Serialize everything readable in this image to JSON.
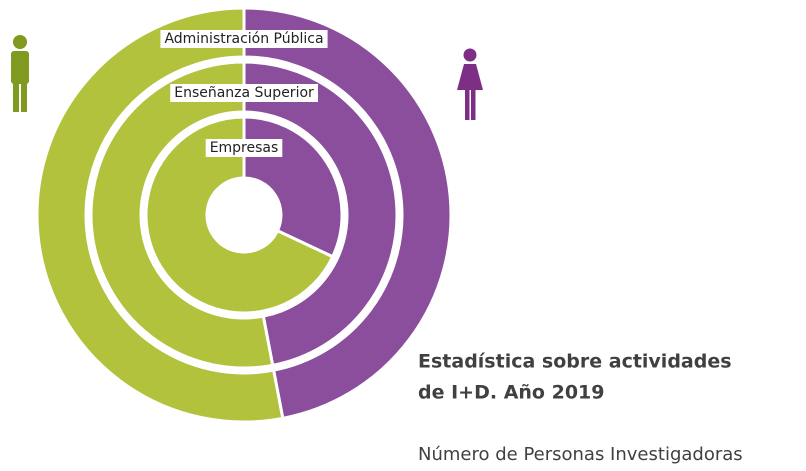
{
  "chart_data": {
    "type": "nested_donut",
    "title": [
      "Estadística sobre actividades",
      "de I+D. Año 2019"
    ],
    "subtitle": "Número de Personas Investigadoras",
    "categories": [
      null,
      null
    ],
    "colors": [
      "#8a4e9c",
      "#b2c23c"
    ],
    "series": [
      {
        "name": "Administración Pública",
        "values": [
          47,
          53
        ]
      },
      {
        "name": "Enseñanza Superior",
        "values": [
          47,
          53
        ]
      },
      {
        "name": "Empresas",
        "values": [
          32,
          68
        ]
      }
    ]
  }
}
